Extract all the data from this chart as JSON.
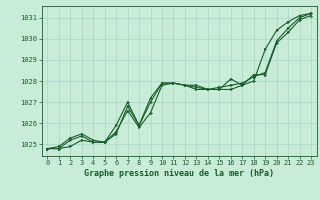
{
  "title": "Graphe pression niveau de la mer (hPa)",
  "background_color": "#c8ecd8",
  "grid_color": "#a8d4c8",
  "line_color": "#1a5c2a",
  "xlim": [
    -0.5,
    23.5
  ],
  "ylim": [
    1024.45,
    1031.55
  ],
  "yticks": [
    1025,
    1026,
    1027,
    1028,
    1029,
    1030,
    1031
  ],
  "xticks": [
    0,
    1,
    2,
    3,
    4,
    5,
    6,
    7,
    8,
    9,
    10,
    11,
    12,
    13,
    14,
    15,
    16,
    17,
    18,
    19,
    20,
    21,
    22,
    23
  ],
  "line1_x": [
    0,
    1,
    2,
    3,
    4,
    5,
    6,
    7,
    8,
    9,
    10,
    11,
    12,
    13,
    14,
    15,
    16,
    17,
    18,
    19,
    20,
    21,
    22,
    23
  ],
  "line1_y": [
    1024.8,
    1024.8,
    1024.9,
    1025.2,
    1025.1,
    1025.1,
    1025.6,
    1026.6,
    1025.8,
    1026.5,
    1027.8,
    1027.9,
    1027.8,
    1027.8,
    1027.6,
    1027.6,
    1027.6,
    1027.8,
    1028.0,
    1029.5,
    1030.4,
    1030.8,
    1031.1,
    1031.2
  ],
  "line2_x": [
    0,
    1,
    2,
    3,
    4,
    5,
    6,
    7,
    8,
    9,
    10,
    11,
    12,
    13,
    14,
    15,
    16,
    17,
    18,
    19,
    20,
    21,
    22,
    23
  ],
  "line2_y": [
    1024.8,
    1024.8,
    1025.2,
    1025.4,
    1025.1,
    1025.1,
    1025.5,
    1026.8,
    1025.9,
    1027.0,
    1027.9,
    1027.9,
    1027.8,
    1027.7,
    1027.6,
    1027.7,
    1027.8,
    1027.9,
    1028.2,
    1028.4,
    1029.9,
    1030.5,
    1031.0,
    1031.2
  ],
  "line3_x": [
    0,
    1,
    2,
    3,
    4,
    5,
    6,
    7,
    8,
    9,
    10,
    11,
    12,
    13,
    14,
    15,
    16,
    17,
    18,
    19,
    20,
    21,
    22,
    23
  ],
  "line3_y": [
    1024.8,
    1024.9,
    1025.3,
    1025.5,
    1025.2,
    1025.1,
    1025.9,
    1027.0,
    1025.9,
    1027.2,
    1027.9,
    1027.9,
    1027.8,
    1027.6,
    1027.6,
    1027.6,
    1028.1,
    1027.8,
    1028.3,
    1028.3,
    1029.8,
    1030.3,
    1030.9,
    1031.1
  ],
  "marker_size": 1.8,
  "line_width": 0.8,
  "tick_fontsize": 5,
  "xlabel_fontsize": 6
}
